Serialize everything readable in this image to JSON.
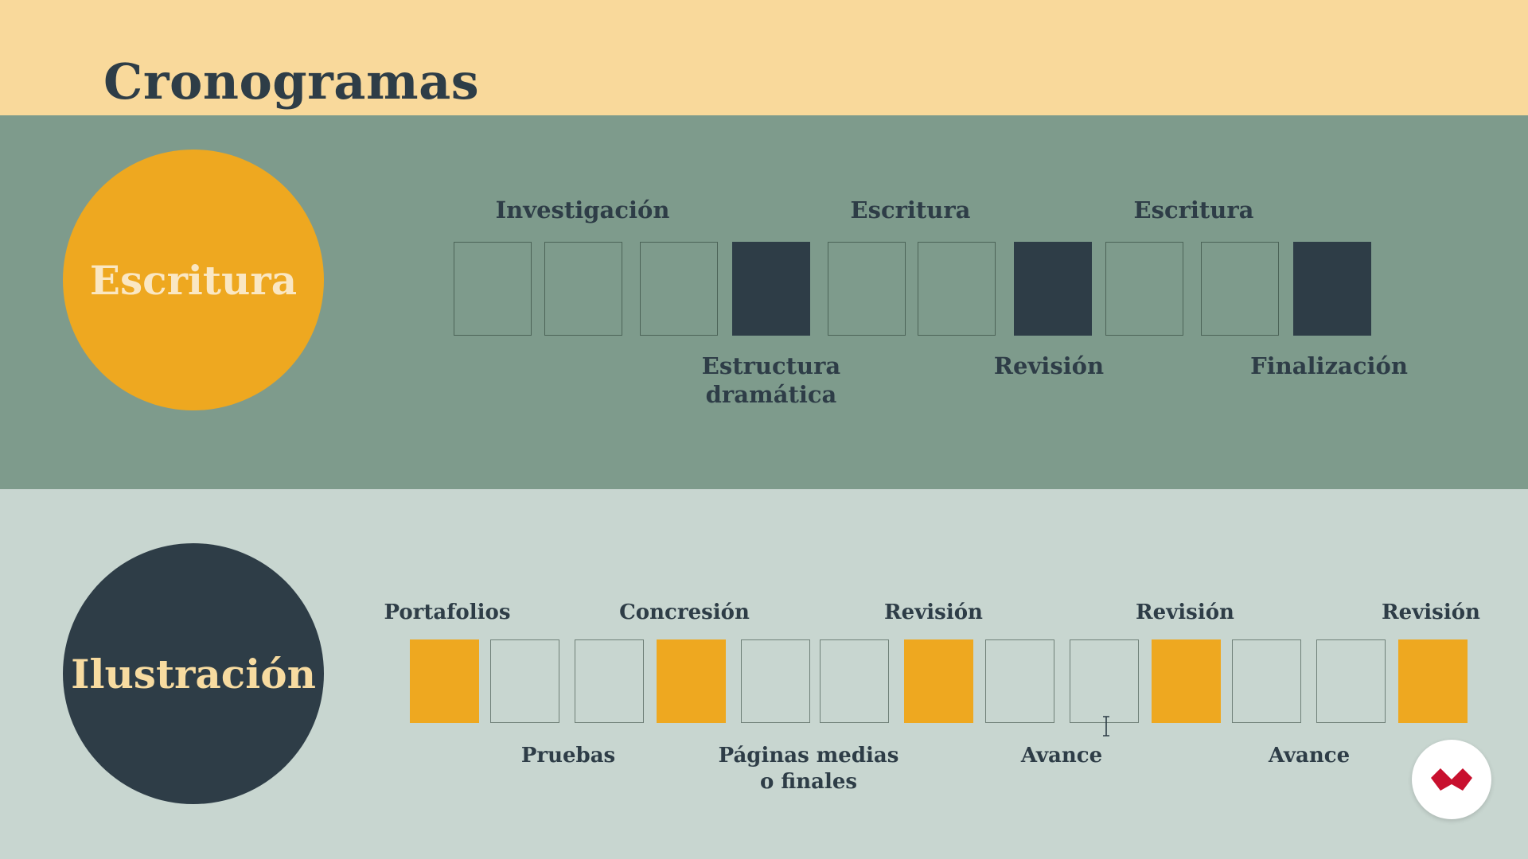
{
  "header": {
    "title": "Cronogramas"
  },
  "writing": {
    "circle_label": "Escritura",
    "cells": [
      "empty",
      "empty",
      "empty",
      "filled",
      "empty",
      "empty",
      "filled",
      "empty",
      "empty",
      "filled"
    ],
    "labels_above": [
      "Investigación",
      "Escritura",
      "Escritura"
    ],
    "labels_below": [
      "Estructura\ndramática",
      "Revisión",
      "Finalización"
    ]
  },
  "illustration": {
    "circle_label": "Ilustración",
    "cells": [
      "filled",
      "empty",
      "empty",
      "filled",
      "empty",
      "empty",
      "filled",
      "empty",
      "empty",
      "filled",
      "empty",
      "empty",
      "filled"
    ],
    "labels_above": [
      "Portafolios",
      "Concresión",
      "Revisión",
      "Revisión",
      "Revisión"
    ],
    "labels_below": [
      "Pruebas",
      "Páginas medias\no finales",
      "Avance",
      "Avance"
    ]
  },
  "colors": {
    "header_bg": "#f9d99b",
    "top_band": "#7e9b8c",
    "bottom_band": "#c8d6d0",
    "accent_orange": "#eea820",
    "dark": "#2e3d47",
    "logo_red": "#c8102e"
  },
  "icons": {
    "cursor": "text-cursor-icon",
    "logo": "brand-logo-icon"
  }
}
